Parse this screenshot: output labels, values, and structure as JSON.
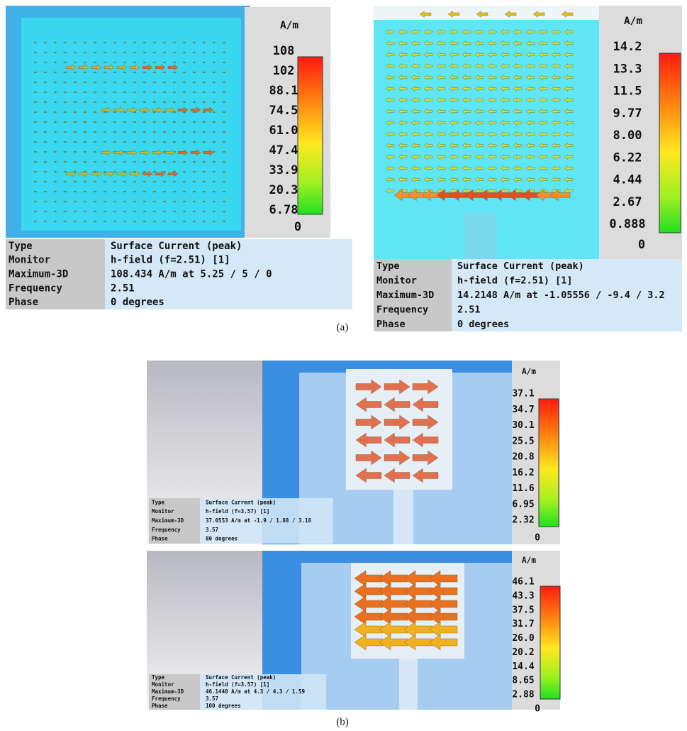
{
  "panels": [
    {
      "unit": "A/m",
      "scale": [
        "108",
        "102",
        "88.1",
        "74.5",
        "61.0",
        "47.4",
        "33.9",
        "20.3",
        "6.78",
        "0"
      ],
      "info": [
        [
          "Type",
          "Surface Current (peak)"
        ],
        [
          "Monitor",
          "h-field (f=2.51) [1]"
        ],
        [
          "Maximum-3D",
          "108.434 A/m at 5.25 / 5 / 0"
        ],
        [
          "Frequency",
          "2.51"
        ],
        [
          "Phase",
          "0 degrees"
        ]
      ]
    },
    {
      "unit": "A/m",
      "scale": [
        "14.2",
        "13.3",
        "11.5",
        "9.77",
        "8.00",
        "6.22",
        "4.44",
        "2.67",
        "0.888",
        "0"
      ],
      "info": [
        [
          "Type",
          "Surface Current (peak)"
        ],
        [
          "Monitor",
          "h-field (f=2.51) [1]"
        ],
        [
          "Maximum-3D",
          "14.2148 A/m at -1.05556 / -9.4 / 3.2"
        ],
        [
          "Frequency",
          "2.51"
        ],
        [
          "Phase",
          "0 degrees"
        ]
      ]
    },
    {
      "unit": "A/m",
      "scale": [
        "37.1",
        "34.7",
        "30.1",
        "25.5",
        "20.8",
        "16.2",
        "11.6",
        "6.95",
        "2.32",
        "0"
      ],
      "info": [
        [
          "Type",
          "Surface Current (peak)"
        ],
        [
          "Monitor",
          "h-field (f=3.57) [1]"
        ],
        [
          "Maximum-3D",
          "37.0553 A/m at -1.9 / 1.88 / 3.18"
        ],
        [
          "Frequency",
          "3.57"
        ],
        [
          "Phase",
          "80 degrees"
        ]
      ]
    },
    {
      "unit": "A/m",
      "scale": [
        "46.1",
        "43.3",
        "37.5",
        "31.7",
        "26.0",
        "20.2",
        "14.4",
        "8.65",
        "2.88",
        "0"
      ],
      "info": [
        [
          "Type",
          "Surface Current (peak)"
        ],
        [
          "Monitor",
          "h-field (f=3.57) [1]"
        ],
        [
          "Maximum-3D",
          "46.1440 A/m at 4.3 / 4.3 / 1.59"
        ],
        [
          "Frequency",
          "3.57"
        ],
        [
          "Phase",
          "100 degrees"
        ]
      ]
    }
  ],
  "captions": [
    "(a)",
    "(b)"
  ]
}
